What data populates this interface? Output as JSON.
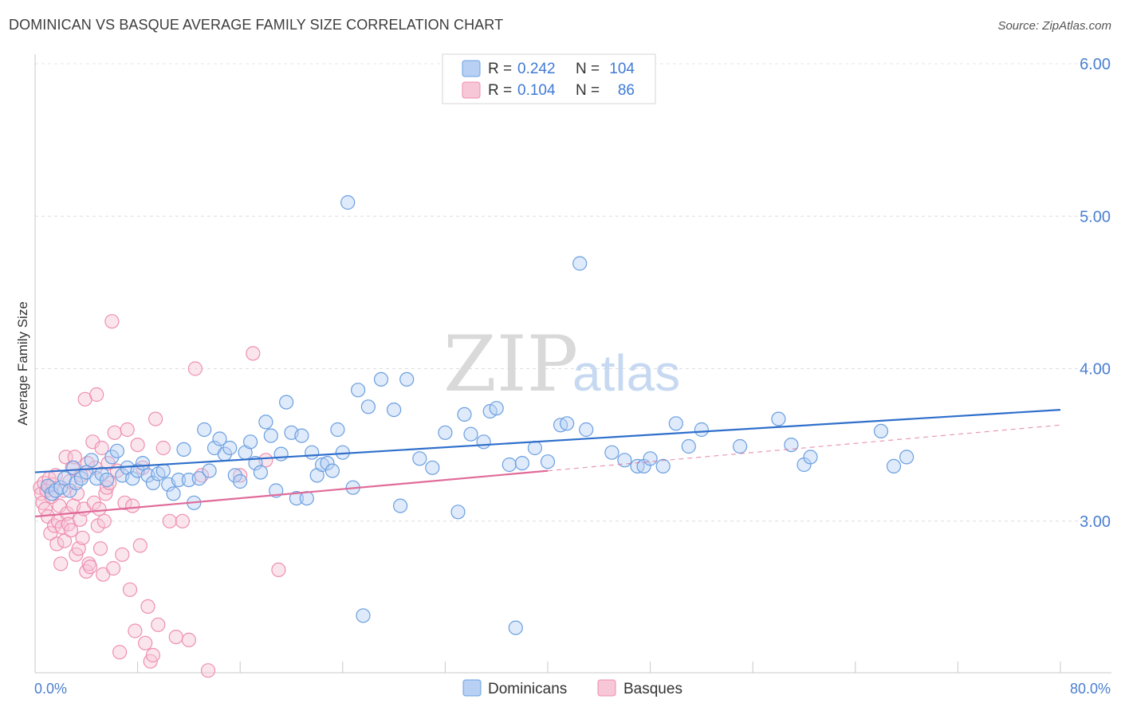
{
  "title": "DOMINICAN VS BASQUE AVERAGE FAMILY SIZE CORRELATION CHART",
  "source": "Source: ZipAtlas.com",
  "watermark": {
    "zip": "ZIP",
    "atlas": "atlas"
  },
  "chart_data": {
    "type": "scatter",
    "xlabel": "",
    "ylabel": "Average Family Size",
    "xlim": [
      0,
      80
    ],
    "ylim": [
      1.95,
      6.1
    ],
    "x_tick_labels": [
      "0.0%",
      "80.0%"
    ],
    "y_ticks": [
      3.0,
      4.0,
      5.0,
      6.0
    ],
    "y_tick_labels": [
      "3.00",
      "4.00",
      "5.00",
      "6.00"
    ],
    "grid": true,
    "legend": {
      "placement": "top-center",
      "rows": [
        {
          "r_label": "R =",
          "r_value": "0.242",
          "n_label": "N =",
          "n_value": "104"
        },
        {
          "r_label": "R =",
          "r_value": "0.104",
          "n_label": "N =",
          "n_value": "86"
        }
      ]
    },
    "series": [
      {
        "name": "Dominicans",
        "color": "#6a9fe0",
        "fill": "#b8d0f3",
        "line_color": "#2f6fcb",
        "trend": {
          "x": [
            0,
            80
          ],
          "y": [
            3.32,
            3.73
          ],
          "solid_until": 80
        },
        "points": [
          [
            1.0,
            3.23
          ],
          [
            1.3,
            3.18
          ],
          [
            1.6,
            3.2
          ],
          [
            2.0,
            3.22
          ],
          [
            2.3,
            3.28
          ],
          [
            2.7,
            3.2
          ],
          [
            3.0,
            3.35
          ],
          [
            3.2,
            3.25
          ],
          [
            3.6,
            3.28
          ],
          [
            4.0,
            3.32
          ],
          [
            4.4,
            3.4
          ],
          [
            4.8,
            3.28
          ],
          [
            5.2,
            3.31
          ],
          [
            5.6,
            3.27
          ],
          [
            6.0,
            3.42
          ],
          [
            6.4,
            3.46
          ],
          [
            6.8,
            3.3
          ],
          [
            7.2,
            3.35
          ],
          [
            7.6,
            3.28
          ],
          [
            8.0,
            3.33
          ],
          [
            8.4,
            3.38
          ],
          [
            8.8,
            3.3
          ],
          [
            9.2,
            3.25
          ],
          [
            9.6,
            3.31
          ],
          [
            10.0,
            3.33
          ],
          [
            10.4,
            3.24
          ],
          [
            10.8,
            3.18
          ],
          [
            11.2,
            3.27
          ],
          [
            11.6,
            3.47
          ],
          [
            12.0,
            3.27
          ],
          [
            12.4,
            3.12
          ],
          [
            12.8,
            3.28
          ],
          [
            13.2,
            3.6
          ],
          [
            13.6,
            3.33
          ],
          [
            14.0,
            3.48
          ],
          [
            14.4,
            3.54
          ],
          [
            14.8,
            3.44
          ],
          [
            15.2,
            3.48
          ],
          [
            15.6,
            3.3
          ],
          [
            16.0,
            3.26
          ],
          [
            16.4,
            3.45
          ],
          [
            16.8,
            3.52
          ],
          [
            17.2,
            3.38
          ],
          [
            17.6,
            3.32
          ],
          [
            18.0,
            3.65
          ],
          [
            18.4,
            3.56
          ],
          [
            18.8,
            3.2
          ],
          [
            19.2,
            3.44
          ],
          [
            19.6,
            3.78
          ],
          [
            20.0,
            3.58
          ],
          [
            20.4,
            3.15
          ],
          [
            20.8,
            3.56
          ],
          [
            21.2,
            3.15
          ],
          [
            21.6,
            3.45
          ],
          [
            22.0,
            3.3
          ],
          [
            22.4,
            3.37
          ],
          [
            22.8,
            3.38
          ],
          [
            23.2,
            3.33
          ],
          [
            23.6,
            3.6
          ],
          [
            24.0,
            3.45
          ],
          [
            24.4,
            5.09
          ],
          [
            24.8,
            3.22
          ],
          [
            25.2,
            3.86
          ],
          [
            25.6,
            2.38
          ],
          [
            26.0,
            3.75
          ],
          [
            27.0,
            3.93
          ],
          [
            28.0,
            3.73
          ],
          [
            28.5,
            3.1
          ],
          [
            29.0,
            3.93
          ],
          [
            30.0,
            3.41
          ],
          [
            31.0,
            3.35
          ],
          [
            32.0,
            3.58
          ],
          [
            33.0,
            3.06
          ],
          [
            33.5,
            3.7
          ],
          [
            34.0,
            3.57
          ],
          [
            35.0,
            3.52
          ],
          [
            35.5,
            3.72
          ],
          [
            36.0,
            3.74
          ],
          [
            37.0,
            3.37
          ],
          [
            37.5,
            2.3
          ],
          [
            38.0,
            3.38
          ],
          [
            39.0,
            3.48
          ],
          [
            40.0,
            3.39
          ],
          [
            41.0,
            3.63
          ],
          [
            41.5,
            3.64
          ],
          [
            43.0,
            3.6
          ],
          [
            45.0,
            3.45
          ],
          [
            46.0,
            3.4
          ],
          [
            47.0,
            3.36
          ],
          [
            47.5,
            3.36
          ],
          [
            48.0,
            3.41
          ],
          [
            49.0,
            3.36
          ],
          [
            50.0,
            3.64
          ],
          [
            51.0,
            3.49
          ],
          [
            52.0,
            3.6
          ],
          [
            55.0,
            3.49
          ],
          [
            58.0,
            3.67
          ],
          [
            59.0,
            3.5
          ],
          [
            60.0,
            3.37
          ],
          [
            60.5,
            3.42
          ],
          [
            66.0,
            3.59
          ],
          [
            67.0,
            3.36
          ],
          [
            68.0,
            3.42
          ],
          [
            42.5,
            4.69
          ]
        ]
      },
      {
        "name": "Basques",
        "color": "#ee8fb0",
        "fill": "#f7c6d7",
        "line_color": "#e06b99",
        "trend": {
          "x": [
            0,
            80
          ],
          "y": [
            3.03,
            3.63
          ],
          "solid_until": 40
        },
        "points": [
          [
            0.4,
            3.22
          ],
          [
            0.5,
            3.18
          ],
          [
            0.6,
            3.12
          ],
          [
            0.7,
            3.25
          ],
          [
            0.8,
            3.08
          ],
          [
            0.9,
            3.2
          ],
          [
            1.0,
            3.03
          ],
          [
            1.1,
            3.28
          ],
          [
            1.2,
            2.92
          ],
          [
            1.3,
            3.16
          ],
          [
            1.4,
            3.24
          ],
          [
            1.5,
            2.97
          ],
          [
            1.6,
            3.3
          ],
          [
            1.7,
            2.85
          ],
          [
            1.8,
            3.0
          ],
          [
            1.9,
            3.1
          ],
          [
            2.0,
            2.72
          ],
          [
            2.1,
            2.96
          ],
          [
            2.2,
            3.2
          ],
          [
            2.3,
            2.87
          ],
          [
            2.4,
            3.42
          ],
          [
            2.5,
            3.05
          ],
          [
            2.6,
            2.98
          ],
          [
            2.7,
            3.26
          ],
          [
            2.8,
            2.94
          ],
          [
            2.9,
            3.35
          ],
          [
            3.0,
            3.1
          ],
          [
            3.1,
            3.42
          ],
          [
            3.2,
            2.78
          ],
          [
            3.3,
            3.18
          ],
          [
            3.4,
            2.82
          ],
          [
            3.5,
            3.01
          ],
          [
            3.6,
            3.3
          ],
          [
            3.7,
            2.89
          ],
          [
            3.8,
            3.08
          ],
          [
            3.9,
            3.8
          ],
          [
            4.0,
            2.67
          ],
          [
            4.1,
            3.38
          ],
          [
            4.2,
            2.72
          ],
          [
            4.3,
            2.7
          ],
          [
            4.5,
            3.52
          ],
          [
            4.6,
            3.12
          ],
          [
            4.7,
            3.35
          ],
          [
            4.8,
            3.83
          ],
          [
            4.9,
            2.97
          ],
          [
            5.0,
            3.08
          ],
          [
            5.1,
            2.82
          ],
          [
            5.2,
            3.48
          ],
          [
            5.3,
            2.65
          ],
          [
            5.4,
            3.0
          ],
          [
            5.5,
            3.18
          ],
          [
            5.6,
            3.22
          ],
          [
            5.7,
            3.38
          ],
          [
            5.8,
            3.25
          ],
          [
            6.0,
            4.31
          ],
          [
            6.1,
            2.69
          ],
          [
            6.2,
            3.58
          ],
          [
            6.4,
            3.33
          ],
          [
            6.6,
            2.14
          ],
          [
            6.8,
            2.78
          ],
          [
            7.0,
            3.12
          ],
          [
            7.2,
            3.6
          ],
          [
            7.4,
            2.55
          ],
          [
            7.6,
            3.1
          ],
          [
            7.8,
            2.28
          ],
          [
            8.0,
            3.5
          ],
          [
            8.2,
            2.84
          ],
          [
            8.4,
            3.35
          ],
          [
            8.6,
            2.2
          ],
          [
            8.8,
            2.44
          ],
          [
            9.0,
            2.08
          ],
          [
            9.2,
            2.12
          ],
          [
            9.4,
            3.67
          ],
          [
            9.6,
            2.32
          ],
          [
            10.0,
            3.48
          ],
          [
            10.5,
            3.0
          ],
          [
            11.0,
            2.24
          ],
          [
            12.0,
            2.22
          ],
          [
            12.5,
            4.0
          ],
          [
            13.0,
            3.3
          ],
          [
            13.5,
            2.02
          ],
          [
            16.0,
            3.3
          ],
          [
            17.0,
            4.1
          ],
          [
            18.0,
            3.4
          ],
          [
            19.0,
            2.68
          ],
          [
            11.5,
            3.0
          ]
        ]
      }
    ]
  }
}
